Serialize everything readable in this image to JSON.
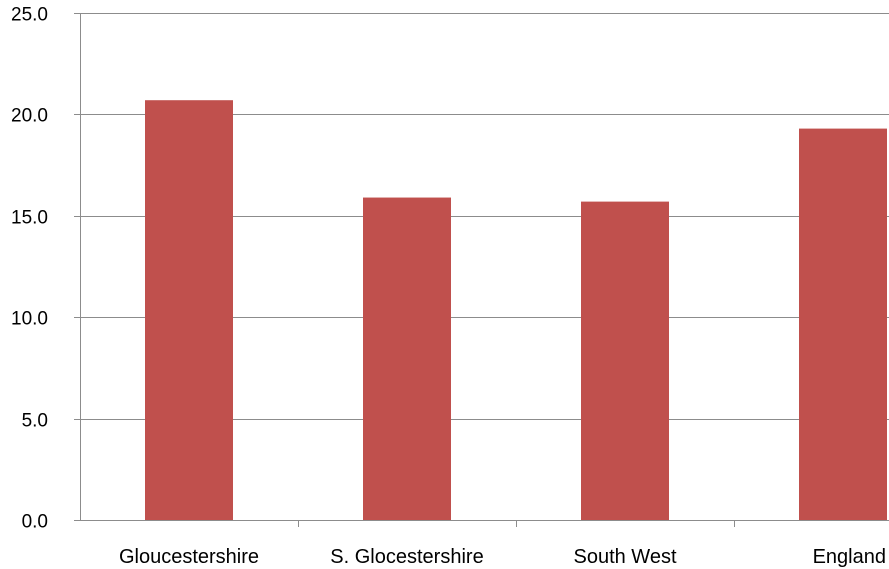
{
  "chart_data": {
    "type": "bar",
    "categories": [
      "Gloucestershire",
      "S. Glocestershire",
      "South West",
      "England"
    ],
    "values": [
      20.7,
      15.9,
      15.7,
      19.3
    ],
    "title": "",
    "xlabel": "",
    "ylabel": "",
    "ylim": [
      0,
      25
    ],
    "yticks": [
      "0.0",
      "5.0",
      "10.0",
      "15.0",
      "20.0",
      "25.0"
    ],
    "grid": true,
    "legend": "none",
    "bar_color": "#c0504d"
  }
}
